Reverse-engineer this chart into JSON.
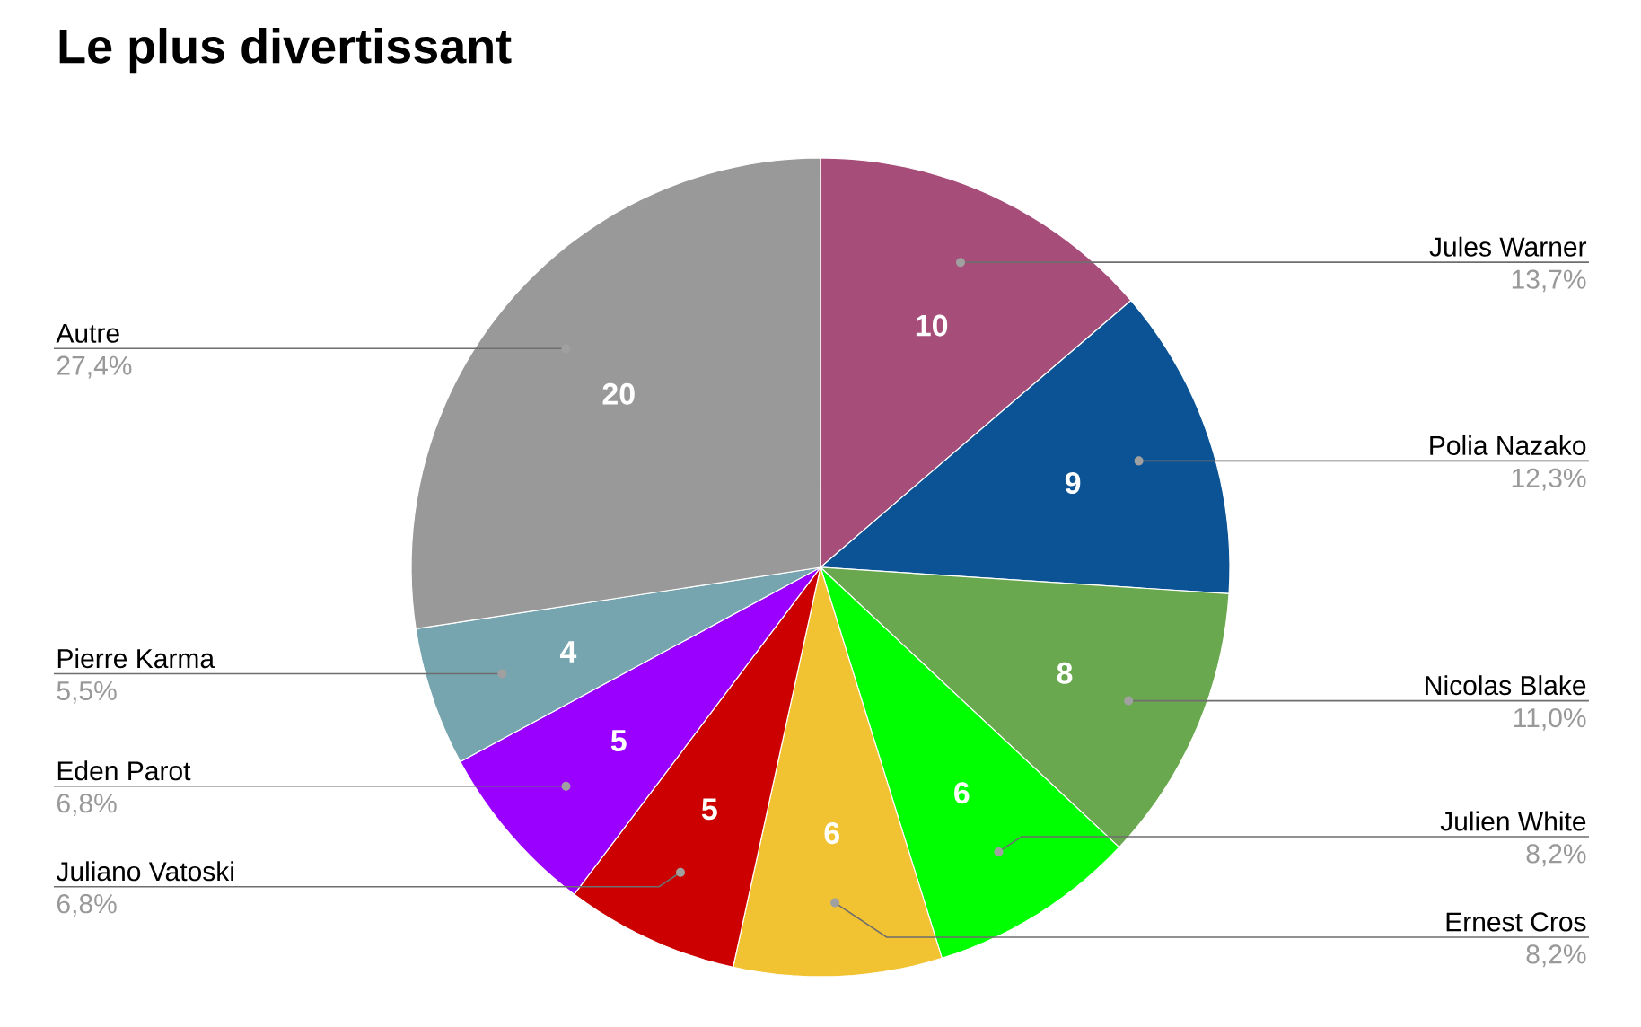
{
  "chart_data": {
    "type": "pie",
    "title": "Le plus divertissant",
    "categories": [
      "Jules Warner",
      "Polia Nazako",
      "Nicolas Blake",
      "Julien White",
      "Ernest Cros",
      "Juliano Vatoski",
      "Eden Parot",
      "Pierre Karma",
      "Autre"
    ],
    "values": [
      10,
      9,
      8,
      6,
      6,
      5,
      5,
      4,
      20
    ],
    "colors": [
      "#a64d79",
      "#0b5394",
      "#6aa84f",
      "#00ff00",
      "#f1c232",
      "#cc0000",
      "#9900ff",
      "#76a5af",
      "#999999"
    ],
    "value_labels": [
      "10",
      "9",
      "8",
      "6",
      "6",
      "5",
      "5",
      "4",
      "20"
    ],
    "annotations": [
      "13,7%",
      "12,3%",
      "11,0%",
      "8,2%",
      "8,2%",
      "6,8%",
      "6,8%",
      "5,5%",
      "27,4%"
    ]
  }
}
